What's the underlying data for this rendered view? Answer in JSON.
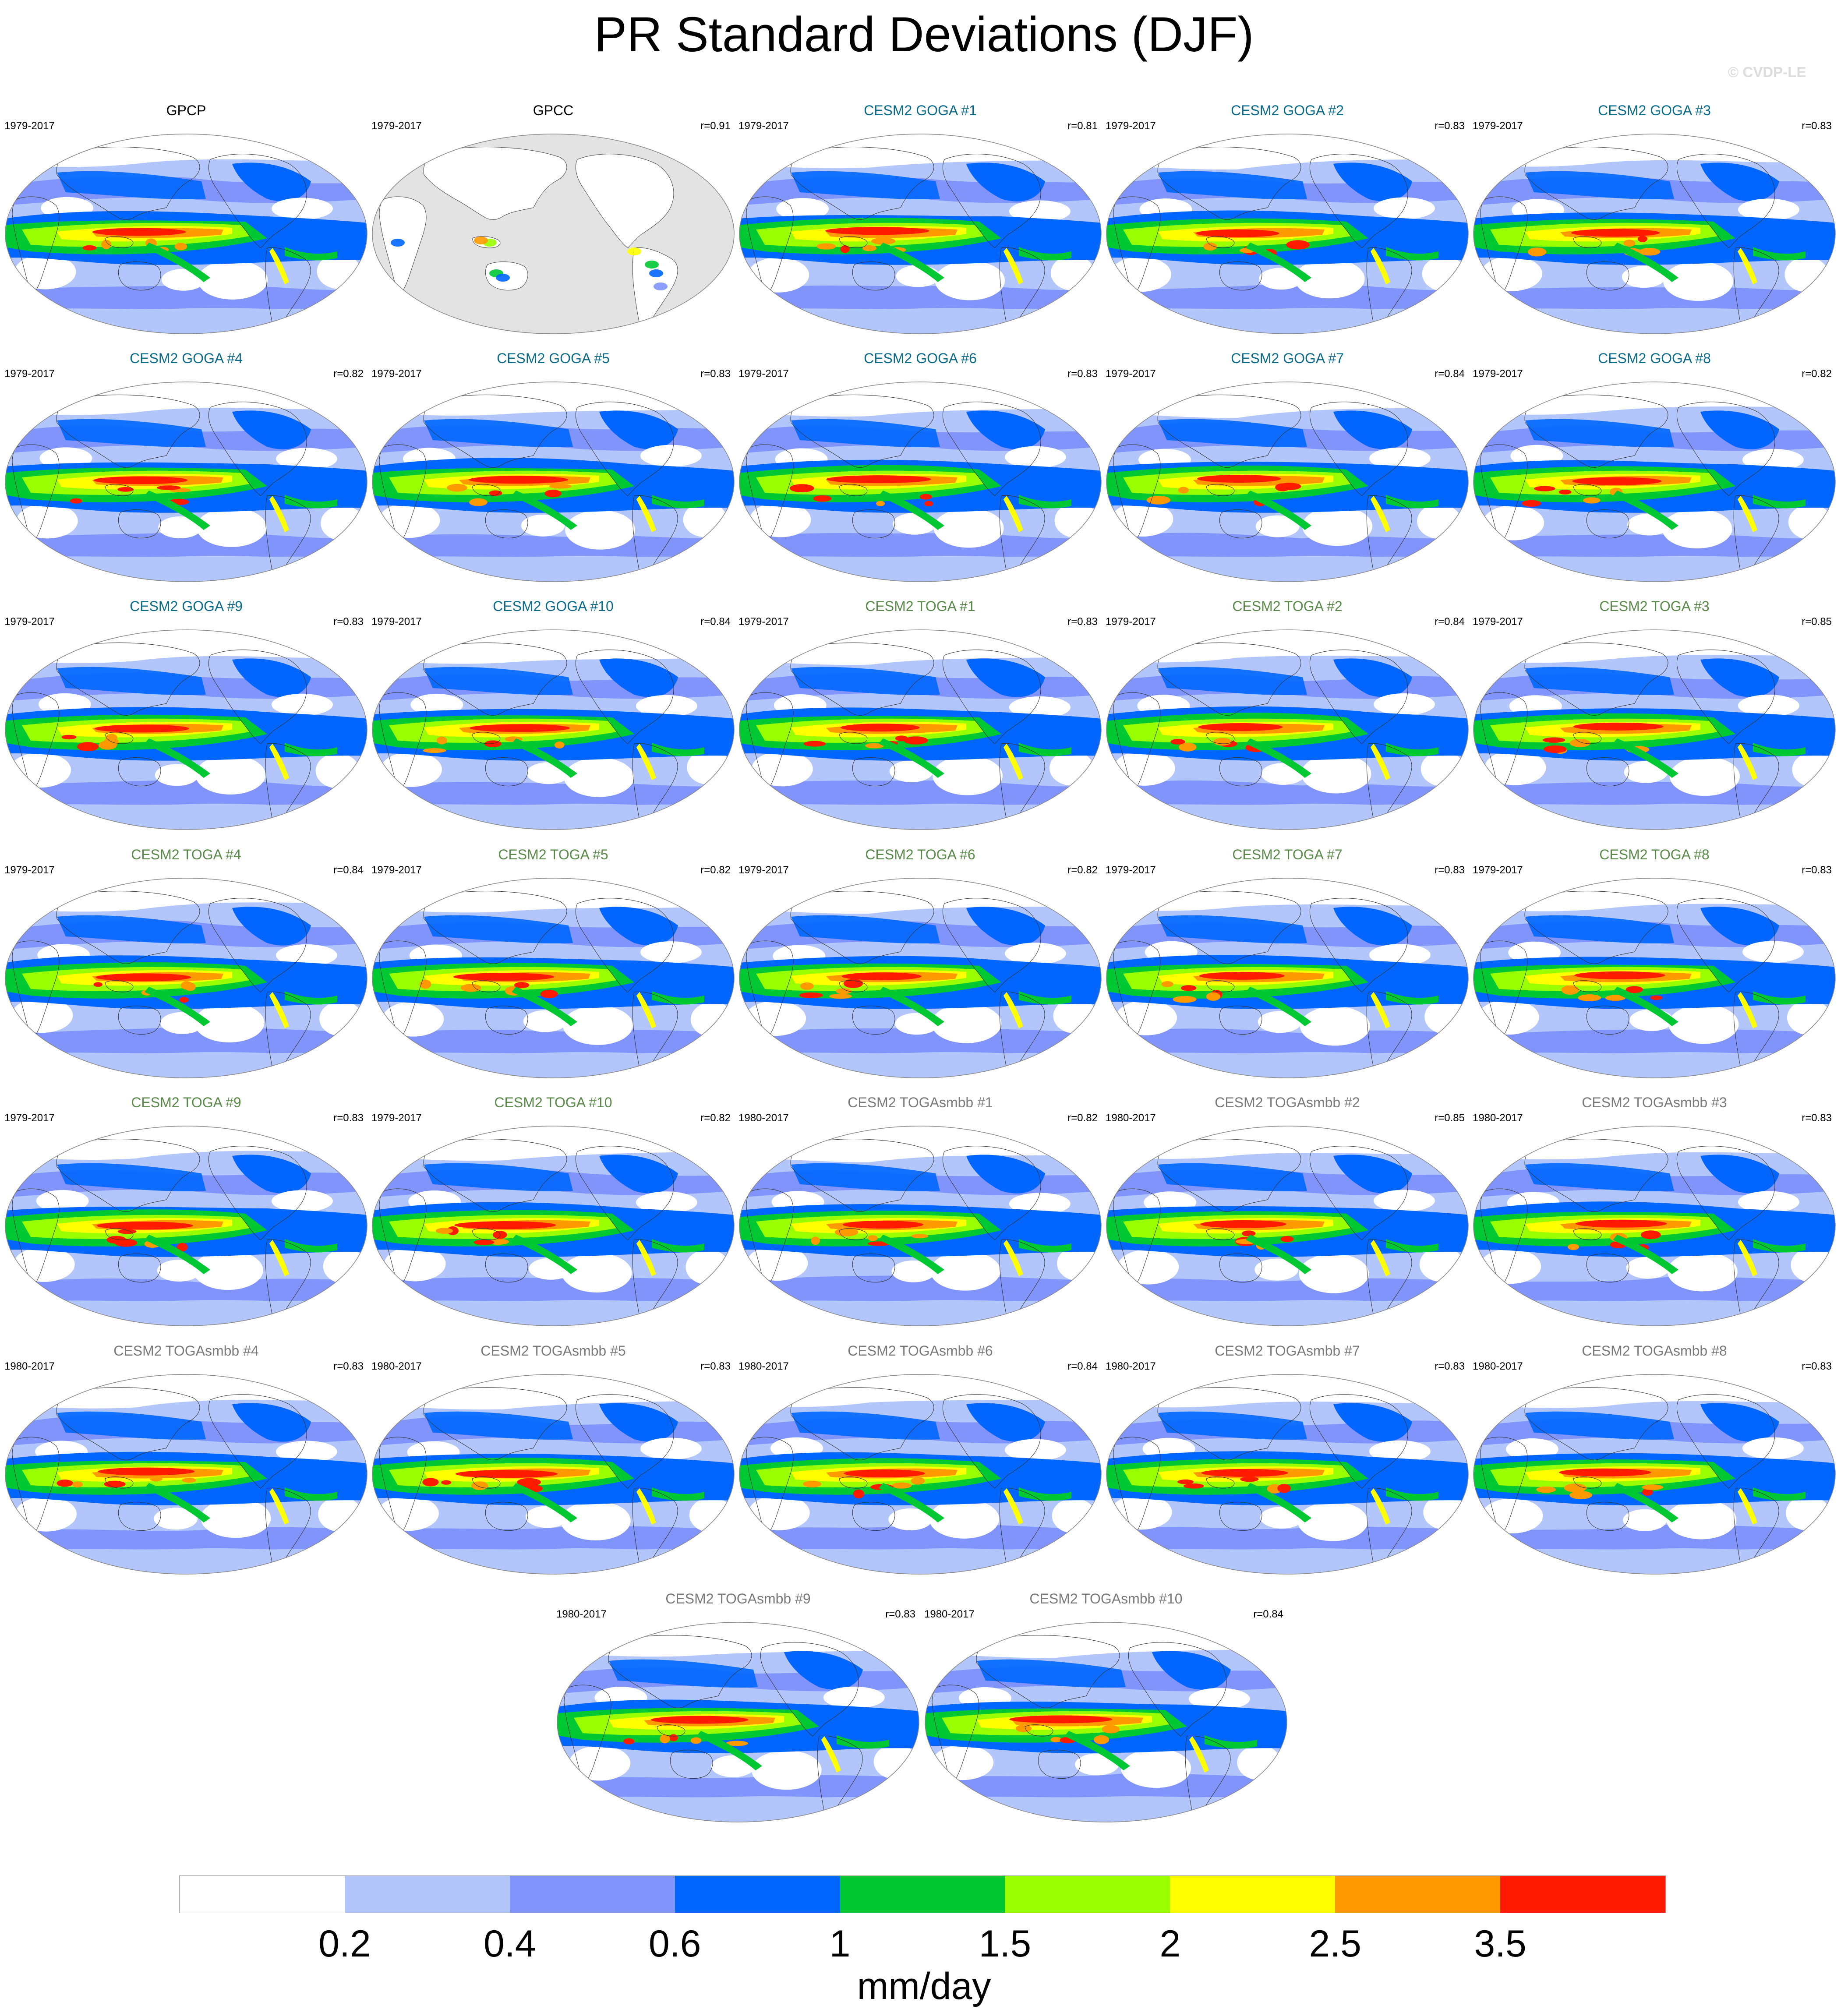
{
  "title": "PR Standard Deviations (DJF)",
  "watermark": "© CVDP-LE",
  "colors": {
    "goga_title": "#0b6b8a",
    "toga_title": "#5a8a4a",
    "togasmbb_title": "#7a7a7a",
    "obs_title": "#000000",
    "land_mask": "#e3e3e3",
    "coast": "#333333"
  },
  "colorbar": {
    "units": "mm/day",
    "tick_labels": [
      "0.2",
      "0.4",
      "0.6",
      "1",
      "1.5",
      "2",
      "2.5",
      "3.5"
    ],
    "colors": [
      "#ffffff",
      "#b3c6fb",
      "#8094fb",
      "#0066ff",
      "#00c832",
      "#99ff00",
      "#ffff00",
      "#ff9900",
      "#ff1a00"
    ]
  },
  "panels": [
    {
      "title": "GPCP",
      "years": "1979-2017",
      "corr": "",
      "kind": "obs"
    },
    {
      "title": "GPCC",
      "years": "1979-2017",
      "corr": "r=0.91",
      "kind": "gpcc"
    },
    {
      "title": "CESM2 GOGA #1",
      "years": "1979-2017",
      "corr": "r=0.81",
      "kind": "goga"
    },
    {
      "title": "CESM2 GOGA #2",
      "years": "1979-2017",
      "corr": "r=0.83",
      "kind": "goga"
    },
    {
      "title": "CESM2 GOGA #3",
      "years": "1979-2017",
      "corr": "r=0.83",
      "kind": "goga"
    },
    {
      "title": "CESM2 GOGA #4",
      "years": "1979-2017",
      "corr": "r=0.82",
      "kind": "goga"
    },
    {
      "title": "CESM2 GOGA #5",
      "years": "1979-2017",
      "corr": "r=0.83",
      "kind": "goga"
    },
    {
      "title": "CESM2 GOGA #6",
      "years": "1979-2017",
      "corr": "r=0.83",
      "kind": "goga"
    },
    {
      "title": "CESM2 GOGA #7",
      "years": "1979-2017",
      "corr": "r=0.84",
      "kind": "goga"
    },
    {
      "title": "CESM2 GOGA #8",
      "years": "1979-2017",
      "corr": "r=0.82",
      "kind": "goga"
    },
    {
      "title": "CESM2 GOGA #9",
      "years": "1979-2017",
      "corr": "r=0.83",
      "kind": "goga"
    },
    {
      "title": "CESM2 GOGA #10",
      "years": "1979-2017",
      "corr": "r=0.84",
      "kind": "goga"
    },
    {
      "title": "CESM2 TOGA #1",
      "years": "1979-2017",
      "corr": "r=0.83",
      "kind": "toga"
    },
    {
      "title": "CESM2 TOGA #2",
      "years": "1979-2017",
      "corr": "r=0.84",
      "kind": "toga"
    },
    {
      "title": "CESM2 TOGA #3",
      "years": "1979-2017",
      "corr": "r=0.85",
      "kind": "toga"
    },
    {
      "title": "CESM2 TOGA #4",
      "years": "1979-2017",
      "corr": "r=0.84",
      "kind": "toga"
    },
    {
      "title": "CESM2 TOGA #5",
      "years": "1979-2017",
      "corr": "r=0.82",
      "kind": "toga"
    },
    {
      "title": "CESM2 TOGA #6",
      "years": "1979-2017",
      "corr": "r=0.82",
      "kind": "toga"
    },
    {
      "title": "CESM2 TOGA #7",
      "years": "1979-2017",
      "corr": "r=0.83",
      "kind": "toga"
    },
    {
      "title": "CESM2 TOGA #8",
      "years": "1979-2017",
      "corr": "r=0.83",
      "kind": "toga"
    },
    {
      "title": "CESM2 TOGA #9",
      "years": "1979-2017",
      "corr": "r=0.83",
      "kind": "toga"
    },
    {
      "title": "CESM2 TOGA #10",
      "years": "1979-2017",
      "corr": "r=0.82",
      "kind": "toga"
    },
    {
      "title": "CESM2 TOGAsmbb #1",
      "years": "1980-2017",
      "corr": "r=0.82",
      "kind": "togasmbb"
    },
    {
      "title": "CESM2 TOGAsmbb #2",
      "years": "1980-2017",
      "corr": "r=0.85",
      "kind": "togasmbb"
    },
    {
      "title": "CESM2 TOGAsmbb #3",
      "years": "1980-2017",
      "corr": "r=0.83",
      "kind": "togasmbb"
    },
    {
      "title": "CESM2 TOGAsmbb #4",
      "years": "1980-2017",
      "corr": "r=0.83",
      "kind": "togasmbb"
    },
    {
      "title": "CESM2 TOGAsmbb #5",
      "years": "1980-2017",
      "corr": "r=0.83",
      "kind": "togasmbb"
    },
    {
      "title": "CESM2 TOGAsmbb #6",
      "years": "1980-2017",
      "corr": "r=0.84",
      "kind": "togasmbb"
    },
    {
      "title": "CESM2 TOGAsmbb #7",
      "years": "1980-2017",
      "corr": "r=0.83",
      "kind": "togasmbb"
    },
    {
      "title": "CESM2 TOGAsmbb #8",
      "years": "1980-2017",
      "corr": "r=0.83",
      "kind": "togasmbb"
    },
    {
      "title": "CESM2 TOGAsmbb #9",
      "years": "1980-2017",
      "corr": "r=0.83",
      "kind": "togasmbb"
    },
    {
      "title": "CESM2 TOGAsmbb #10",
      "years": "1980-2017",
      "corr": "r=0.84",
      "kind": "togasmbb"
    }
  ]
}
